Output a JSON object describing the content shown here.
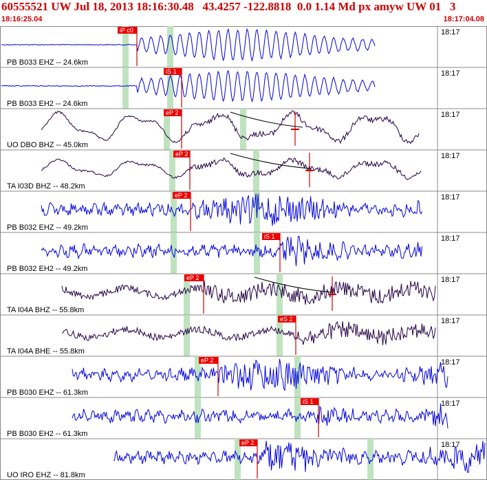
{
  "header": {
    "title": "60555521 UW Jul 18, 2013 18:16:30.48   43.4257 -122.8818  0.0 1.14 Md px amyw UW 01   3",
    "start_time": "18:16:25.04",
    "end_time": "18:17:04.08"
  },
  "colors": {
    "header_text": "#cc0000",
    "trace_blue": "#0000dd",
    "trace_dark": "#220044",
    "pick_box": "#ee0000",
    "pick_line": "#cc0000",
    "window_band": "#bfe3bf",
    "grid": "#888888",
    "moveout_curve": "#000000"
  },
  "traces": [
    {
      "label": "PB B033 EHZ -- 24.6km",
      "time_tick": "18:17",
      "color": "blue",
      "picks": [
        {
          "text": "iP c0"
        }
      ]
    },
    {
      "label": "PB B033 EH2 -- 24.6km",
      "time_tick": "18:17",
      "color": "blue",
      "picks": [
        {
          "text": "iS 1"
        }
      ]
    },
    {
      "label": "UO DBO BHZ -- 45.0km",
      "time_tick": "18:17",
      "color": "dark",
      "picks": [
        {
          "text": "eP 2"
        }
      ]
    },
    {
      "label": "TA I03D BHZ -- 48.2km",
      "time_tick": "18:17",
      "color": "dark",
      "picks": [
        {
          "text": "eP 2"
        }
      ]
    },
    {
      "label": "PB B032 EHZ -- 49.2km",
      "time_tick": "18:17",
      "color": "blue",
      "picks": [
        {
          "text": "eP 2"
        }
      ]
    },
    {
      "label": "PB B032 EH2 -- 49.2km",
      "time_tick": "18:17",
      "color": "blue",
      "picks": [
        {
          "text": "iS 1"
        }
      ]
    },
    {
      "label": "TA I04A BHZ -- 55.8km",
      "time_tick": "18:17",
      "color": "dark",
      "picks": [
        {
          "text": "eP 2"
        }
      ]
    },
    {
      "label": "TA I04A BHE -- 55.8km",
      "time_tick": "18:17",
      "color": "dark",
      "picks": [
        {
          "text": "eS 2"
        }
      ]
    },
    {
      "label": "PB B030 EHZ -- 61.3km",
      "time_tick": "18:17",
      "color": "blue",
      "picks": [
        {
          "text": "eP 2"
        }
      ]
    },
    {
      "label": "PB B030 EH2 -- 61.3km",
      "time_tick": "18:17",
      "color": "blue",
      "picks": [
        {
          "text": "iS 1"
        }
      ]
    },
    {
      "label": "UO IRO EHZ -- 81.8km",
      "time_tick": "18:17",
      "color": "blue",
      "picks": [
        {
          "text": "eP 2"
        }
      ]
    }
  ]
}
